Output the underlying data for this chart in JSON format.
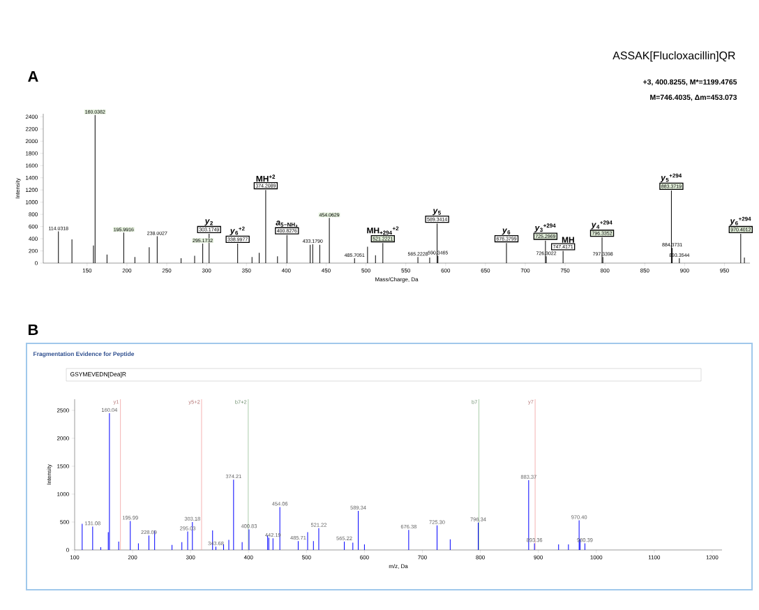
{
  "chart_data": [
    {
      "type": "bar",
      "title": "ASSAK[Flucloxacillin]QR",
      "subtitle": "+3, 400.8255, M*=1199.4765",
      "xlabel": "Mass/Charge, Da",
      "ylabel": "Intensity",
      "x": [
        114.03,
        131,
        158,
        160.04,
        175,
        196,
        210,
        228,
        238,
        268,
        285,
        295.17,
        303.17,
        338.99,
        357,
        366,
        374.21,
        389,
        400.83,
        430,
        433.18,
        442,
        454.06,
        485.71,
        502,
        512,
        521.22,
        565.22,
        580,
        589.34,
        590.35,
        676.38,
        725.3,
        726.3,
        747.42,
        796.34,
        797.34,
        883.37,
        884.37,
        893.35,
        970.4,
        975
      ],
      "values": [
        520,
        390,
        290,
        2430,
        140,
        500,
        100,
        260,
        440,
        80,
        120,
        320,
        480,
        320,
        100,
        170,
        1200,
        110,
        460,
        300,
        310,
        300,
        740,
        80,
        270,
        130,
        330,
        100,
        90,
        650,
        120,
        330,
        370,
        110,
        200,
        420,
        100,
        1190,
        250,
        80,
        480,
        90
      ],
      "color": "#000000",
      "xlim": [
        95,
        982
      ],
      "ylim": [
        0,
        2450
      ],
      "xticks": [
        150,
        200,
        250,
        300,
        350,
        400,
        450,
        500,
        550,
        600,
        650,
        700,
        750,
        800,
        850,
        900,
        950
      ],
      "yticks": [
        0,
        200,
        400,
        600,
        800,
        1000,
        1200,
        1400,
        1600,
        1800,
        2000,
        2200,
        2400
      ],
      "annotations": [
        {
          "text": "114.0318",
          "x": 114.03,
          "y": 520
        },
        {
          "text": "160.0382",
          "x": 160.04,
          "y": 2430
        },
        {
          "text": "195.9916",
          "x": 196,
          "y": 500
        },
        {
          "text": "238.0027",
          "x": 238,
          "y": 440
        },
        {
          "text": "295.1732",
          "x": 295.17,
          "y": 320
        },
        {
          "text": "303.1749",
          "x": 303.17,
          "y": 480
        },
        {
          "text": "338.9977",
          "x": 338.99,
          "y": 320
        },
        {
          "text": "374.2089",
          "x": 374.21,
          "y": 1200
        },
        {
          "text": "400.8276",
          "x": 400.83,
          "y": 460
        },
        {
          "text": "433.1790",
          "x": 433.18,
          "y": 310
        },
        {
          "text": "454.0629",
          "x": 454.06,
          "y": 740
        },
        {
          "text": "485.7051",
          "x": 485.71,
          "y": 80
        },
        {
          "text": "521.2221",
          "x": 521.22,
          "y": 330
        },
        {
          "text": "565.2228",
          "x": 565.22,
          "y": 100
        },
        {
          "text": "589.3414",
          "x": 589.34,
          "y": 650
        },
        {
          "text": "590.3465",
          "x": 590.35,
          "y": 120
        },
        {
          "text": "676.3799",
          "x": 676.38,
          "y": 330
        },
        {
          "text": "725.2969",
          "x": 725.3,
          "y": 370
        },
        {
          "text": "726.3022",
          "x": 726.3,
          "y": 110
        },
        {
          "text": "747.4171",
          "x": 747.42,
          "y": 200
        },
        {
          "text": "796.3352",
          "x": 796.34,
          "y": 420
        },
        {
          "text": "797.3398",
          "x": 797.34,
          "y": 100
        },
        {
          "text": "883.3719",
          "x": 883.37,
          "y": 1190
        },
        {
          "text": "884.3731",
          "x": 884.37,
          "y": 250
        },
        {
          "text": "893.3544",
          "x": 893.35,
          "y": 80
        },
        {
          "text": "970.4012",
          "x": 970.4,
          "y": 480
        },
        {
          "text": "*y*$_{2}$",
          "x": 303.17,
          "y": 480
        },
        {
          "text": "*y*$_{6}$$^{+2}$",
          "x": 338.99,
          "y": 320
        },
        {
          "text": "MH$^{+2}$",
          "x": 374.21,
          "y": 1200
        },
        {
          "text": "*a*$_{5}$$_{−NH₃}$",
          "x": 400.83,
          "y": 460
        },
        {
          "text": "MH$_{+294}$$^{+2}$",
          "x": 521.22,
          "y": 330
        },
        {
          "text": "*y*$_{5}$",
          "x": 589.34,
          "y": 650
        },
        {
          "text": "*y*$_{6}$",
          "x": 676.38,
          "y": 330
        },
        {
          "text": "*y*$_{3}$$^{+294}$",
          "x": 725.3,
          "y": 370
        },
        {
          "text": "MH",
          "x": 747.42,
          "y": 200
        },
        {
          "text": "*y*$_{4}$$^{+294}$",
          "x": 796.34,
          "y": 420
        },
        {
          "text": "*y*$_{5}$$^{+294}$",
          "x": 883.37,
          "y": 1190
        },
        {
          "text": "*y*$_{6}$$^{+294}$",
          "x": 970.4,
          "y": 480
        },
        "A",
        "M=746.4035,  Δm=453.073"
      ]
    },
    {
      "type": "bar",
      "title": "Fragmentation Evidence for Peptide",
      "subtitle": "GSYMEVEDN[Dea]R",
      "xlabel": "m/z, Da",
      "ylabel": "Intensity",
      "x": [
        113,
        131.08,
        145,
        158,
        160.04,
        176,
        195.99,
        210,
        228.09,
        238,
        268,
        285,
        295.03,
        303.18,
        338,
        343.68,
        357,
        366,
        374.21,
        389,
        400.83,
        433,
        435,
        442.19,
        454.06,
        485.71,
        502,
        512,
        521.22,
        565.22,
        580,
        589.34,
        600,
        676.38,
        725.3,
        748,
        796.34,
        883.37,
        893.36,
        935,
        952,
        970.4,
        972,
        980.39
      ],
      "values": [
        470,
        420,
        50,
        320,
        2450,
        150,
        520,
        120,
        260,
        350,
        90,
        140,
        330,
        500,
        350,
        60,
        100,
        180,
        1260,
        140,
        370,
        260,
        220,
        210,
        770,
        160,
        320,
        160,
        390,
        150,
        130,
        700,
        100,
        360,
        440,
        190,
        490,
        1250,
        120,
        100,
        100,
        530,
        190,
        120
      ],
      "color": "#0000ff",
      "xlim": [
        100,
        1217
      ],
      "ylim": [
        0,
        2700
      ],
      "xticks": [
        100,
        200,
        300,
        400,
        500,
        600,
        700,
        800,
        900,
        1000,
        1100,
        1200
      ],
      "yticks": [
        0,
        500,
        1000,
        1500,
        2000,
        2500
      ],
      "ref_lines": [
        {
          "axis": "x",
          "value": 179,
          "label": "y1",
          "color": "#f2a0a0"
        },
        {
          "axis": "x",
          "value": 319,
          "label": "y5+2",
          "color": "#f2a0a0"
        },
        {
          "axis": "x",
          "value": 399.5,
          "label": "b7+2",
          "color": "#96c096"
        },
        {
          "axis": "x",
          "value": 797.5,
          "label": "b7",
          "color": "#96c096"
        },
        {
          "axis": "x",
          "value": 894.5,
          "label": "y7",
          "color": "#f2a0a0"
        }
      ],
      "annotations": [
        {
          "text": "131.08",
          "x": 131.08,
          "y": 420
        },
        {
          "text": "160.04",
          "x": 160.04,
          "y": 2450
        },
        {
          "text": "195.99",
          "x": 195.99,
          "y": 520
        },
        {
          "text": "228.09",
          "x": 228.09,
          "y": 260
        },
        {
          "text": "295.03",
          "x": 295.03,
          "y": 330
        },
        {
          "text": "303.18",
          "x": 303.18,
          "y": 500
        },
        {
          "text": "343.68",
          "x": 343.68,
          "y": 60
        },
        {
          "text": "374.21",
          "x": 374.21,
          "y": 1260
        },
        {
          "text": "400.83",
          "x": 400.83,
          "y": 370
        },
        {
          "text": "442.19",
          "x": 442.19,
          "y": 210
        },
        {
          "text": "454.06",
          "x": 454.06,
          "y": 770
        },
        {
          "text": "485.71",
          "x": 485.71,
          "y": 160
        },
        {
          "text": "521.22",
          "x": 521.22,
          "y": 390
        },
        {
          "text": "565.22",
          "x": 565.22,
          "y": 150
        },
        {
          "text": "589.34",
          "x": 589.34,
          "y": 700
        },
        {
          "text": "676.38",
          "x": 676.38,
          "y": 360
        },
        {
          "text": "725.30",
          "x": 725.3,
          "y": 440
        },
        {
          "text": "796.34",
          "x": 796.34,
          "y": 490
        },
        {
          "text": "883.37",
          "x": 883.37,
          "y": 1250
        },
        {
          "text": "893.36",
          "x": 893.36,
          "y": 120
        },
        {
          "text": "970.40",
          "x": 970.4,
          "y": 530
        },
        {
          "text": "980.39",
          "x": 980.39,
          "y": 120
        },
        "B"
      ]
    }
  ]
}
